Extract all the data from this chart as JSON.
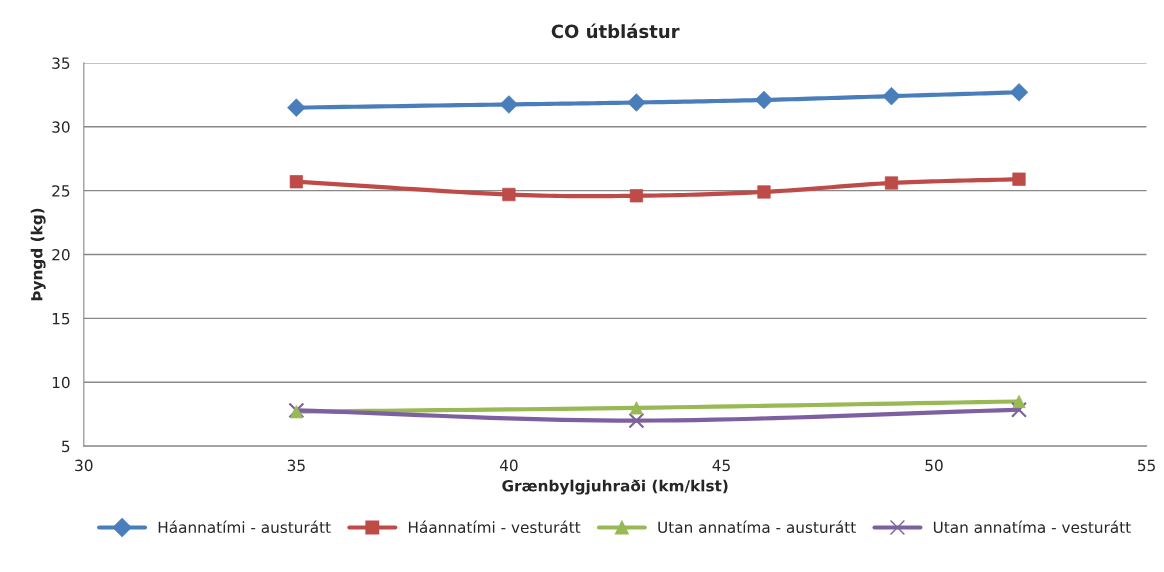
{
  "chart_data": {
    "type": "line",
    "title": "CO útblástur",
    "xlabel": "Grænbylgjuhraði (km/klst)",
    "ylabel": "Þyngd (kg)",
    "xlim": [
      30,
      55
    ],
    "xticks": [
      30,
      35,
      40,
      45,
      50,
      55
    ],
    "ylim": [
      5,
      35
    ],
    "yticks": [
      5,
      10,
      15,
      20,
      25,
      30,
      35
    ],
    "grid": "y",
    "legend": "bottom",
    "line_style": "solid",
    "series": [
      {
        "name": "Háannatími - austurátt",
        "color": "#4a7ebb",
        "marker": "diamond",
        "x": [
          35,
          40,
          43,
          46,
          49,
          52
        ],
        "values": [
          31.5,
          31.75,
          31.9,
          32.1,
          32.4,
          32.7
        ]
      },
      {
        "name": "Háannatími - vesturátt",
        "color": "#be4b48",
        "marker": "square",
        "x": [
          35,
          40,
          43,
          46,
          49,
          52
        ],
        "values": [
          25.7,
          24.7,
          24.6,
          24.9,
          25.6,
          25.9
        ]
      },
      {
        "name": "Utan annatíma - austurátt",
        "color": "#98b954",
        "marker": "triangle",
        "x": [
          35,
          43,
          52
        ],
        "values": [
          7.7,
          8.0,
          8.5
        ]
      },
      {
        "name": "Utan annatíma - vesturátt",
        "color": "#7d60a0",
        "marker": "cross",
        "x": [
          35,
          43,
          52
        ],
        "values": [
          7.8,
          7.0,
          7.85
        ]
      }
    ]
  }
}
